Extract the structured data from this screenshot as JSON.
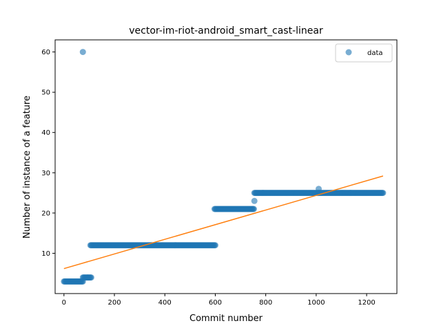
{
  "chart_data": {
    "type": "scatter",
    "title": "vector-im-riot-android_smart_cast-linear",
    "xlabel": "Commit number",
    "ylabel": "Number of instance of a feature",
    "xlim": [
      -35,
      1320
    ],
    "ylim": [
      0,
      63
    ],
    "x_ticks": [
      0,
      200,
      400,
      600,
      800,
      1000,
      1200
    ],
    "y_ticks": [
      10,
      20,
      30,
      40,
      50,
      60
    ],
    "grid": false,
    "legend": {
      "position": "top-right",
      "entries": [
        "data"
      ]
    },
    "colors": {
      "data": "#1f77b4",
      "fit": "#ff7f0e"
    },
    "segments": [
      {
        "x_start": 0,
        "x_end": 75,
        "y": 3
      },
      {
        "x_start": 75,
        "x_end": 110,
        "y": 4
      },
      {
        "x_start": 105,
        "x_end": 600,
        "y": 12
      },
      {
        "x_start": 597,
        "x_end": 755,
        "y": 21
      },
      {
        "x_start": 755,
        "x_end": 1265,
        "y": 25
      }
    ],
    "outliers": [
      {
        "x": 75,
        "y": 60
      },
      {
        "x": 755,
        "y": 23
      },
      {
        "x": 1010,
        "y": 26
      }
    ],
    "fit_line": {
      "x": [
        0,
        1265
      ],
      "y": [
        6.2,
        29.2
      ]
    }
  }
}
